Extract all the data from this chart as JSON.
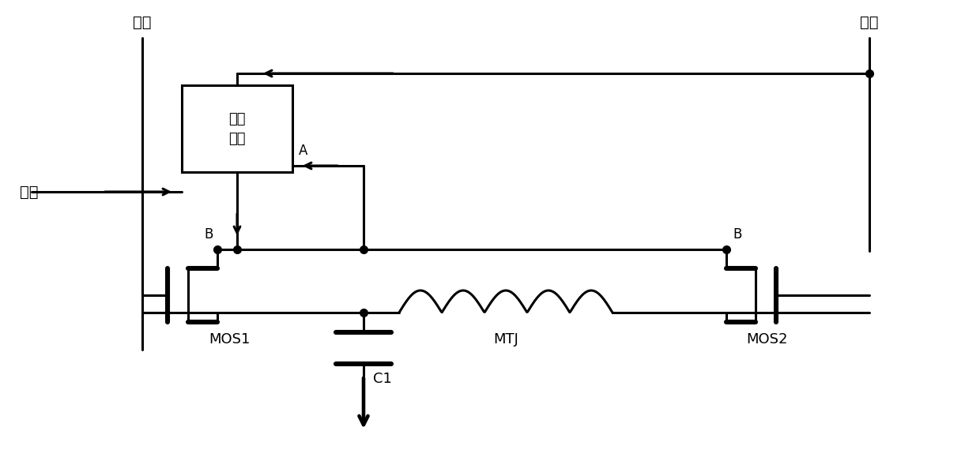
{
  "title": "",
  "background_color": "#ffffff",
  "line_color": "#000000",
  "line_width": 2.5,
  "labels": {
    "yuan_xian": "源线",
    "wei_xian": "位线",
    "zi_xian": "字线",
    "control_unit": "控制\n单元",
    "node_A": "A",
    "node_B1": "B",
    "node_B2": "B",
    "mos1": "MOS1",
    "mos2": "MOS2",
    "mtj": "MTJ",
    "c1": "C1"
  },
  "font_size": 14,
  "font_size_label": 13
}
